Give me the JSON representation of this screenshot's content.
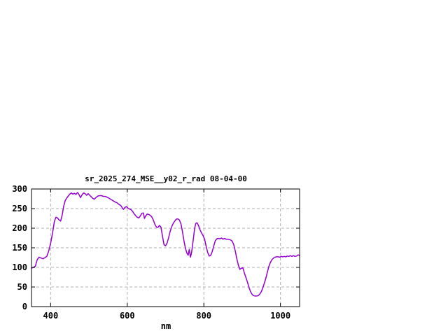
{
  "window": {
    "background": "#ffffff"
  },
  "chart_data": {
    "type": "line",
    "title": "sr_2025_274_MSE__y02_r_rad 08-04-00",
    "xlabel": "nm",
    "ylabel": "",
    "xlim": [
      350,
      1050
    ],
    "ylim": [
      0,
      300
    ],
    "xticks": [
      400,
      600,
      800,
      1000
    ],
    "yticks": [
      0,
      50,
      100,
      150,
      200,
      250,
      300
    ],
    "grid": true,
    "grid_style": "dashed",
    "legend_position": "none",
    "line_color": "#9400d3",
    "grid_color": "#b0b0b0",
    "axis_color": "#000000",
    "series": [
      {
        "name": "sr_2025_274_MSE__y02_r_rad",
        "x": [
          350,
          355,
          360,
          365,
          370,
          375,
          380,
          385,
          390,
          395,
          400,
          405,
          410,
          414,
          418,
          422,
          426,
          430,
          434,
          438,
          442,
          446,
          450,
          454,
          458,
          462,
          466,
          470,
          474,
          478,
          482,
          486,
          490,
          494,
          498,
          502,
          506,
          510,
          514,
          518,
          523,
          528,
          533,
          538,
          543,
          548,
          553,
          558,
          563,
          568,
          573,
          578,
          583,
          587,
          590,
          594,
          598,
          602,
          606,
          610,
          614,
          618,
          622,
          626,
          630,
          634,
          638,
          642,
          645,
          648,
          652,
          656,
          660,
          664,
          668,
          672,
          676,
          680,
          684,
          688,
          692,
          696,
          700,
          704,
          708,
          712,
          716,
          720,
          724,
          728,
          732,
          736,
          740,
          744,
          748,
          752,
          756,
          759,
          762,
          765,
          768,
          772,
          776,
          779,
          782,
          786,
          790,
          794,
          798,
          802,
          806,
          810,
          814,
          818,
          822,
          826,
          830,
          834,
          838,
          842,
          846,
          850,
          854,
          858,
          862,
          866,
          870,
          874,
          878,
          882,
          886,
          890,
          894,
          898,
          902,
          906,
          910,
          914,
          918,
          922,
          926,
          930,
          934,
          938,
          942,
          946,
          950,
          954,
          958,
          962,
          966,
          970,
          974,
          978,
          982,
          986,
          990,
          994,
          998,
          1002,
          1006,
          1010,
          1014,
          1018,
          1022,
          1026,
          1030,
          1034,
          1038,
          1042,
          1046,
          1050
        ],
        "y": [
          98,
          100,
          103,
          120,
          126,
          124,
          122,
          125,
          128,
          142,
          162,
          188,
          218,
          228,
          226,
          221,
          218,
          233,
          256,
          270,
          277,
          282,
          287,
          290,
          287,
          289,
          286,
          291,
          286,
          278,
          285,
          290,
          288,
          284,
          288,
          284,
          280,
          276,
          274,
          278,
          282,
          283,
          283,
          281,
          281,
          279,
          276,
          273,
          270,
          267,
          265,
          261,
          258,
          252,
          248,
          253,
          255,
          251,
          249,
          247,
          243,
          237,
          232,
          228,
          226,
          231,
          238,
          239,
          225,
          231,
          236,
          235,
          233,
          229,
          221,
          210,
          203,
          202,
          207,
          203,
          180,
          158,
          155,
          162,
          176,
          192,
          204,
          212,
          218,
          223,
          224,
          221,
          212,
          192,
          168,
          148,
          136,
          131,
          146,
          126,
          138,
          168,
          200,
          212,
          214,
          207,
          196,
          188,
          181,
          172,
          154,
          138,
          129,
          131,
          141,
          155,
          168,
          173,
          174,
          173,
          175,
          172,
          174,
          172,
          172,
          171,
          170,
          167,
          158,
          142,
          122,
          106,
          95,
          98,
          99,
          85,
          74,
          62,
          48,
          38,
          31,
          28,
          27,
          27,
          28,
          32,
          38,
          48,
          60,
          73,
          88,
          103,
          113,
          120,
          124,
          126,
          127,
          127,
          126,
          128,
          127,
          128,
          127,
          129,
          128,
          130,
          128,
          130,
          128,
          129,
          132,
          130
        ]
      }
    ]
  }
}
